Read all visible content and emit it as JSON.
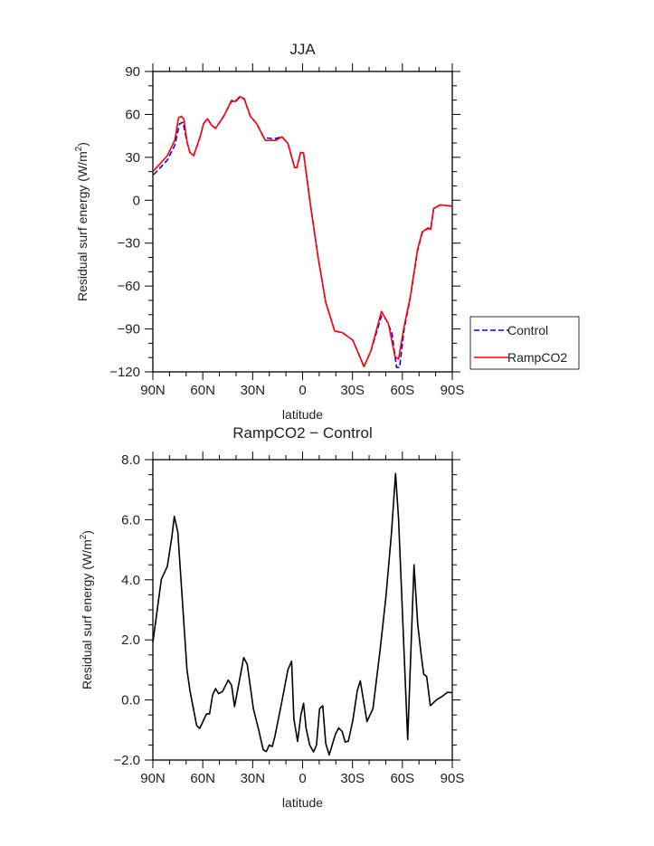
{
  "chart_data": [
    {
      "type": "line",
      "title": "JJA",
      "xlabel": "latitude",
      "ylabel": "Residual surf energy (W/m",
      "ylabel_sup": "2",
      "ylabel_end": ")",
      "xlim": [
        90,
        -90
      ],
      "ylim": [
        -120,
        90
      ],
      "xticks": [
        90,
        60,
        30,
        0,
        -30,
        -60,
        -90
      ],
      "xtick_labels": [
        "90N",
        "60N",
        "30N",
        "0",
        "30S",
        "60S",
        "90S"
      ],
      "yticks": [
        90,
        60,
        30,
        0,
        -30,
        -60,
        -90,
        -120
      ],
      "ytick_labels": [
        "90",
        "60",
        "30",
        "0",
        "−30",
        "−60",
        "−90",
        "−120"
      ],
      "legend_position": "right-bottom-outside",
      "series": [
        {
          "name": "Control",
          "color": "#0000ff",
          "style": "dashed",
          "points": [
            [
              89.5,
              17.9
            ],
            [
              81.3,
              28
            ],
            [
              76.8,
              38.6
            ],
            [
              74,
              53.4
            ],
            [
              71.9,
              54.5
            ],
            [
              69.5,
              40.7
            ],
            [
              67.7,
              33.3
            ],
            [
              65.5,
              31.2
            ],
            [
              61.4,
              45
            ],
            [
              59.6,
              53.4
            ],
            [
              57.2,
              57
            ],
            [
              54.7,
              52.4
            ],
            [
              52.3,
              50.2
            ],
            [
              47.4,
              58.7
            ],
            [
              42.7,
              69.3
            ],
            [
              40.5,
              68.6
            ],
            [
              37.8,
              72
            ],
            [
              35.1,
              70.8
            ],
            [
              31.4,
              58.7
            ],
            [
              27.5,
              53.4
            ],
            [
              23.3,
              43.9
            ],
            [
              17,
              42.8
            ],
            [
              12.4,
              44.3
            ],
            [
              8.8,
              39.7
            ],
            [
              4.8,
              22.8
            ],
            [
              3.4,
              22.8
            ],
            [
              1.2,
              33.3
            ],
            [
              -0.6,
              33.1
            ],
            [
              -4.8,
              -3.7
            ],
            [
              -9.3,
              -39.6
            ],
            [
              -13.9,
              -71.4
            ],
            [
              -19.3,
              -91.4
            ],
            [
              -23.8,
              -92.5
            ],
            [
              -30.2,
              -97.8
            ],
            [
              -32.9,
              -105.2
            ],
            [
              -36.9,
              -116.4
            ],
            [
              -41.1,
              -105.2
            ],
            [
              -47.4,
              -80.9
            ],
            [
              -50.1,
              -83
            ],
            [
              -53.7,
              -92.5
            ],
            [
              -56.5,
              -116.8
            ],
            [
              -58.3,
              -117
            ],
            [
              -61,
              -90.4
            ],
            [
              -64.6,
              -69.2
            ],
            [
              -69.1,
              -35.4
            ],
            [
              -71.9,
              -22.7
            ],
            [
              -75.5,
              -19.5
            ],
            [
              -77,
              -20.6
            ],
            [
              -78.8,
              -5.8
            ],
            [
              -82.7,
              -3.3
            ],
            [
              -89.6,
              -4.1
            ]
          ]
        },
        {
          "name": "RampCO2",
          "color": "#ff0000",
          "style": "solid",
          "points": [
            [
              89.5,
              20.6
            ],
            [
              81.3,
              31.2
            ],
            [
              76.8,
              42
            ],
            [
              74.6,
              57.6
            ],
            [
              72.8,
              58.7
            ],
            [
              71.3,
              56.6
            ],
            [
              69.5,
              41
            ],
            [
              67.7,
              33.3
            ],
            [
              65.5,
              31.2
            ],
            [
              61.4,
              45
            ],
            [
              59.6,
              53.4
            ],
            [
              57.2,
              57
            ],
            [
              54.7,
              52.4
            ],
            [
              52.3,
              50.2
            ],
            [
              47.4,
              58.7
            ],
            [
              42.7,
              69.8
            ],
            [
              40.5,
              69
            ],
            [
              37.8,
              72.5
            ],
            [
              35.1,
              71
            ],
            [
              31.4,
              58.7
            ],
            [
              27.5,
              53.4
            ],
            [
              22.4,
              41.8
            ],
            [
              16.1,
              41.8
            ],
            [
              12.4,
              44.3
            ],
            [
              8.8,
              39.7
            ],
            [
              4.8,
              22.8
            ],
            [
              3.4,
              22.8
            ],
            [
              1.2,
              33.3
            ],
            [
              -0.6,
              33.1
            ],
            [
              -4.8,
              -3.7
            ],
            [
              -9.3,
              -39.6
            ],
            [
              -13.9,
              -71.4
            ],
            [
              -19.3,
              -91.4
            ],
            [
              -23.8,
              -92.5
            ],
            [
              -30.2,
              -97.8
            ],
            [
              -32.9,
              -105.2
            ],
            [
              -36.9,
              -116.4
            ],
            [
              -41.1,
              -105.2
            ],
            [
              -47.4,
              -77.7
            ],
            [
              -51.6,
              -86.2
            ],
            [
              -55.6,
              -109.4
            ],
            [
              -57.7,
              -111.1
            ],
            [
              -61,
              -88.3
            ],
            [
              -64.6,
              -68.5
            ],
            [
              -69.1,
              -34.5
            ],
            [
              -71.9,
              -22.2
            ],
            [
              -75.5,
              -19.3
            ],
            [
              -77,
              -20.4
            ],
            [
              -78.8,
              -5.8
            ],
            [
              -82.7,
              -3.3
            ],
            [
              -89.6,
              -4.1
            ]
          ]
        }
      ]
    },
    {
      "type": "line",
      "title": "RampCO2 − Control",
      "xlabel": "latitude",
      "ylabel": "Residual surf energy (W/m",
      "ylabel_sup": "2",
      "ylabel_end": ")",
      "xlim": [
        90,
        -90
      ],
      "ylim": [
        -2,
        8
      ],
      "xticks": [
        90,
        60,
        30,
        0,
        -30,
        -60,
        -90
      ],
      "xtick_labels": [
        "90N",
        "60N",
        "30N",
        "0",
        "30S",
        "60S",
        "90S"
      ],
      "yticks": [
        8,
        6,
        4,
        2,
        0,
        -2
      ],
      "ytick_labels": [
        "8.0",
        "6.0",
        "4.0",
        "2.0",
        "0.0",
        "−2.0"
      ],
      "series": [
        {
          "name": "RampCO2 − Control",
          "color": "#000000",
          "style": "solid",
          "points": [
            [
              90,
              1.92
            ],
            [
              84.9,
              4.02
            ],
            [
              81.3,
              4.45
            ],
            [
              78.6,
              5.43
            ],
            [
              77.1,
              6.11
            ],
            [
              75,
              5.58
            ],
            [
              69.5,
              1.01
            ],
            [
              67.7,
              0.31
            ],
            [
              63.7,
              -0.85
            ],
            [
              61.9,
              -0.95
            ],
            [
              57.7,
              -0.46
            ],
            [
              55.9,
              -0.46
            ],
            [
              54.1,
              0.16
            ],
            [
              52.3,
              0.38
            ],
            [
              50.5,
              0.21
            ],
            [
              48.1,
              0.28
            ],
            [
              44.7,
              0.66
            ],
            [
              42.7,
              0.49
            ],
            [
              40.9,
              -0.22
            ],
            [
              35.4,
              1.41
            ],
            [
              33.3,
              1.19
            ],
            [
              29.6,
              -0.29
            ],
            [
              26.4,
              -1.0
            ],
            [
              23.7,
              -1.65
            ],
            [
              21.8,
              -1.72
            ],
            [
              20,
              -1.5
            ],
            [
              18.2,
              -1.55
            ],
            [
              16.6,
              -1.2
            ],
            [
              12.4,
              -0.04
            ],
            [
              8.8,
              1.01
            ],
            [
              6.6,
              1.29
            ],
            [
              5.2,
              -0.64
            ],
            [
              3,
              -1.38
            ],
            [
              1,
              -0.49
            ],
            [
              -0.6,
              -0.11
            ],
            [
              -2.1,
              -0.95
            ],
            [
              -4.3,
              -1.5
            ],
            [
              -6.6,
              -1.73
            ],
            [
              -8.4,
              -1.5
            ],
            [
              -10.2,
              -0.29
            ],
            [
              -12.1,
              -0.19
            ],
            [
              -13.9,
              -1.45
            ],
            [
              -16,
              -1.83
            ],
            [
              -19.7,
              -1.15
            ],
            [
              -21.7,
              -0.93
            ],
            [
              -23.8,
              -1.05
            ],
            [
              -25.6,
              -1.4
            ],
            [
              -27.5,
              -1.37
            ],
            [
              -30.2,
              -0.69
            ],
            [
              -32.9,
              0.31
            ],
            [
              -34.7,
              0.64
            ],
            [
              -38.7,
              -0.72
            ],
            [
              -42.3,
              -0.29
            ],
            [
              -46.5,
              1.61
            ],
            [
              -50.1,
              3.42
            ],
            [
              -53.4,
              5.53
            ],
            [
              -55.9,
              7.54
            ],
            [
              -57.7,
              6.03
            ],
            [
              -63.2,
              -1.32
            ],
            [
              -67,
              4.5
            ],
            [
              -69.2,
              2.52
            ],
            [
              -71.3,
              1.51
            ],
            [
              -72.8,
              0.86
            ],
            [
              -74.6,
              0.78
            ],
            [
              -76.8,
              -0.19
            ],
            [
              -80.6,
              0.01
            ],
            [
              -83.7,
              0.11
            ],
            [
              -87.3,
              0.26
            ],
            [
              -89.6,
              0.24
            ]
          ]
        }
      ]
    }
  ]
}
